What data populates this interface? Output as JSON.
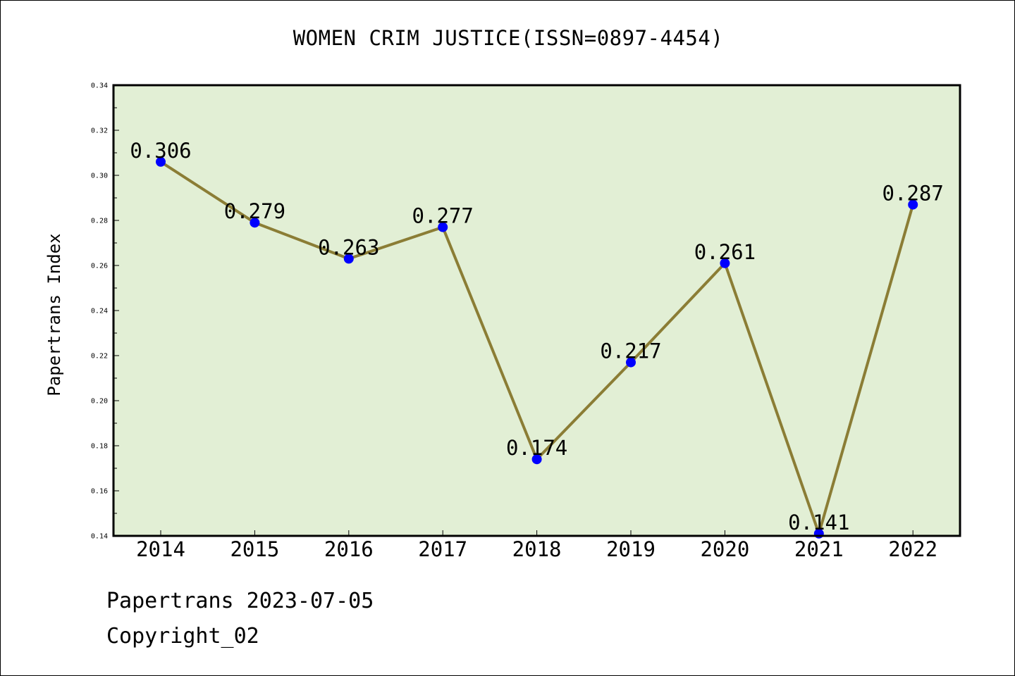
{
  "chart_data": {
    "type": "line",
    "title": "WOMEN CRIM JUSTICE(ISSN=0897-4454)",
    "xlabel": "",
    "ylabel": "Papertrans Index",
    "ylim": [
      0.14,
      0.34
    ],
    "yticks": [
      "0.14",
      "0.16",
      "0.18",
      "0.20",
      "0.22",
      "0.24",
      "0.26",
      "0.28",
      "0.30",
      "0.32",
      "0.34"
    ],
    "categories": [
      "2014",
      "2015",
      "2016",
      "2017",
      "2018",
      "2019",
      "2020",
      "2021",
      "2022"
    ],
    "series": [
      {
        "values": [
          0.306,
          0.279,
          0.263,
          0.277,
          0.174,
          0.217,
          0.261,
          0.141,
          0.287
        ],
        "labels": [
          "0.306",
          "0.279",
          "0.263",
          "0.277",
          "0.174",
          "0.217",
          "0.261",
          "0.141",
          "0.287"
        ],
        "line_color": "#8b7d35",
        "marker_color": "#0000ff"
      }
    ],
    "plot_background": "#e2efd5",
    "grid": false,
    "legend": "none"
  },
  "footer": {
    "date_line": "Papertrans 2023-07-05",
    "copyright_line": "Copyright_02"
  }
}
